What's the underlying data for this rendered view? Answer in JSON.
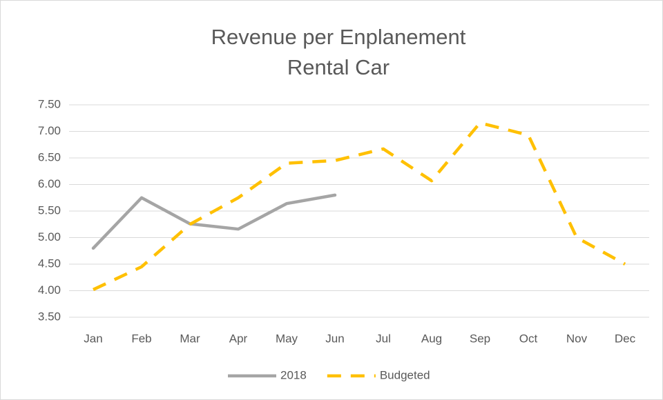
{
  "chart_data": {
    "type": "line",
    "title": "Revenue per Enplanement",
    "subtitle": "Rental Car",
    "categories": [
      "Jan",
      "Feb",
      "Mar",
      "Apr",
      "May",
      "Jun",
      "Jul",
      "Aug",
      "Sep",
      "Oct",
      "Nov",
      "Dec"
    ],
    "series": [
      {
        "name": "2018",
        "color": "#a5a5a5",
        "dashed": false,
        "values": [
          4.8,
          5.75,
          5.26,
          5.16,
          5.64,
          5.8,
          null,
          null,
          null,
          null,
          null,
          null
        ]
      },
      {
        "name": "Budgeted",
        "color": "#ffc000",
        "dashed": true,
        "values": [
          4.02,
          4.45,
          5.25,
          5.75,
          6.4,
          6.45,
          6.67,
          6.07,
          7.16,
          6.93,
          5.0,
          4.5
        ]
      }
    ],
    "ylim": [
      3.5,
      7.5
    ],
    "yticks": [
      {
        "value": 3.5,
        "label": "3.50"
      },
      {
        "value": 4,
        "label": "4.00"
      },
      {
        "value": 4.5,
        "label": "4.50"
      },
      {
        "value": 5,
        "label": "5.00"
      },
      {
        "value": 5.5,
        "label": "5.50"
      },
      {
        "value": 6,
        "label": "6.00"
      },
      {
        "value": 6.5,
        "label": "6.50"
      },
      {
        "value": 7,
        "label": "7.00"
      },
      {
        "value": 7.5,
        "label": "7.50"
      }
    ],
    "grid": true,
    "legend": "bottom"
  }
}
